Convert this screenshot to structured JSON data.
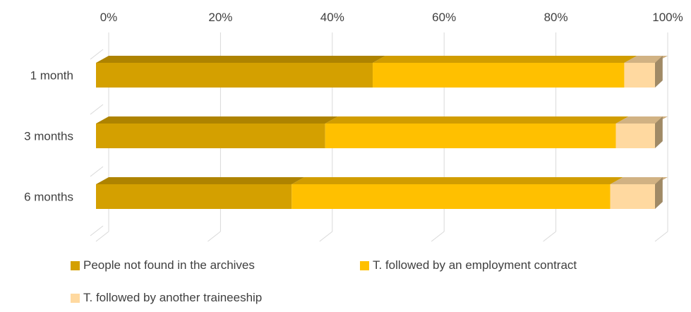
{
  "chart_data": {
    "type": "bar",
    "orientation": "horizontal",
    "stacked": "percent",
    "three_d": true,
    "categories": [
      "1 month",
      "3 months",
      "6 months"
    ],
    "series": [
      {
        "name": "People not found in the archives",
        "color": "#D4A000",
        "values": [
          49.5,
          41,
          35
        ]
      },
      {
        "name": "T. followed by an employment contract",
        "color": "#FFC000",
        "values": [
          45,
          52,
          57
        ]
      },
      {
        "name": "T. followed by another traineeship",
        "color": "#FFD9A0",
        "values": [
          5.5,
          7,
          8
        ]
      }
    ],
    "xticks": [
      "0%",
      "20%",
      "40%",
      "60%",
      "80%",
      "100%"
    ],
    "xlim": [
      0,
      100
    ],
    "grid": true,
    "legend_position": "bottom"
  }
}
